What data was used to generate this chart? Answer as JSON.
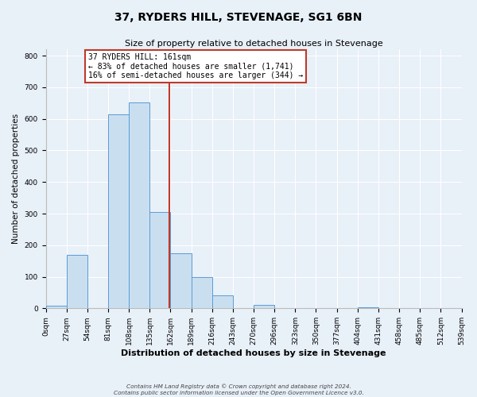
{
  "title": "37, RYDERS HILL, STEVENAGE, SG1 6BN",
  "subtitle": "Size of property relative to detached houses in Stevenage",
  "xlabel": "Distribution of detached houses by size in Stevenage",
  "ylabel": "Number of detached properties",
  "bin_edges": [
    0,
    27,
    54,
    81,
    108,
    135,
    162,
    189,
    216,
    243,
    270,
    297,
    324,
    351,
    378,
    405,
    432,
    459,
    486,
    513,
    540
  ],
  "bin_labels": [
    "0sqm",
    "27sqm",
    "54sqm",
    "81sqm",
    "108sqm",
    "135sqm",
    "162sqm",
    "189sqm",
    "216sqm",
    "243sqm",
    "270sqm",
    "296sqm",
    "323sqm",
    "350sqm",
    "377sqm",
    "404sqm",
    "431sqm",
    "458sqm",
    "485sqm",
    "512sqm",
    "539sqm"
  ],
  "counts": [
    8,
    170,
    0,
    615,
    653,
    305,
    175,
    98,
    40,
    0,
    12,
    0,
    0,
    0,
    0,
    4,
    0,
    0,
    0,
    0
  ],
  "bar_facecolor": "#c9dff0",
  "bar_edgecolor": "#5b9bd5",
  "vline_color": "#c0392b",
  "vline_x": 161,
  "annotation_line1": "37 RYDERS HILL: 161sqm",
  "annotation_line2": "← 83% of detached houses are smaller (1,741)",
  "annotation_line3": "16% of semi-detached houses are larger (344) →",
  "annotation_box_edgecolor": "#c0392b",
  "annotation_box_facecolor": "#ffffff",
  "ylim": [
    0,
    820
  ],
  "xlim": [
    0,
    540
  ],
  "yticks": [
    0,
    100,
    200,
    300,
    400,
    500,
    600,
    700,
    800
  ],
  "background_color": "#e8f0f8",
  "grid_color": "#ffffff",
  "title_fontsize": 10,
  "subtitle_fontsize": 8,
  "xlabel_fontsize": 8,
  "ylabel_fontsize": 7.5,
  "tick_fontsize": 6.5,
  "footer_line1": "Contains HM Land Registry data © Crown copyright and database right 2024.",
  "footer_line2": "Contains public sector information licensed under the Open Government Licence v3.0."
}
